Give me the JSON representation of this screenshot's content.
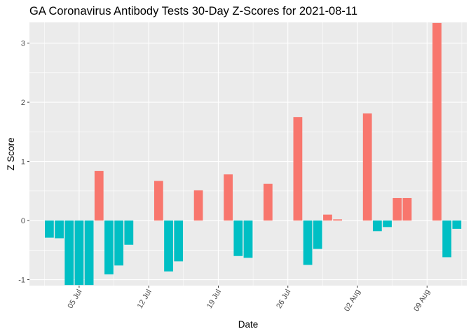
{
  "chart_data": {
    "type": "bar",
    "title": "GA Coronavirus Antibody Tests 30-Day Z-Scores for 2021-08-11",
    "xlabel": "Date",
    "ylabel": "Z Score",
    "x_type": "date",
    "x_ticks": [
      {
        "date": "2021-07-05",
        "label": "05 Jul"
      },
      {
        "date": "2021-07-12",
        "label": "12 Jul"
      },
      {
        "date": "2021-07-19",
        "label": "19 Jul"
      },
      {
        "date": "2021-07-26",
        "label": "26 Jul"
      },
      {
        "date": "2021-08-02",
        "label": "02 Aug"
      },
      {
        "date": "2021-08-09",
        "label": "09 Aug"
      }
    ],
    "y_ticks": [
      -1,
      0,
      1,
      2,
      3
    ],
    "ylim": [
      -1.1,
      3.35
    ],
    "xlim": [
      "2021-06-30",
      "2021-08-13"
    ],
    "grid": true,
    "legend": "none",
    "colors": {
      "positive": "#F8766D",
      "negative": "#00BFC4",
      "panel": "#EBEBEB",
      "grid": "#FFFFFF"
    },
    "points": [
      {
        "date": "2021-07-02",
        "value": -0.29
      },
      {
        "date": "2021-07-03",
        "value": -0.3
      },
      {
        "date": "2021-07-04",
        "value": -1.09
      },
      {
        "date": "2021-07-05",
        "value": -1.09
      },
      {
        "date": "2021-07-06",
        "value": -1.09
      },
      {
        "date": "2021-07-07",
        "value": 0.84
      },
      {
        "date": "2021-07-08",
        "value": -0.91
      },
      {
        "date": "2021-07-09",
        "value": -0.76
      },
      {
        "date": "2021-07-10",
        "value": -0.41
      },
      {
        "date": "2021-07-13",
        "value": 0.67
      },
      {
        "date": "2021-07-14",
        "value": -0.86
      },
      {
        "date": "2021-07-15",
        "value": -0.69
      },
      {
        "date": "2021-07-17",
        "value": 0.51
      },
      {
        "date": "2021-07-20",
        "value": 0.78
      },
      {
        "date": "2021-07-21",
        "value": -0.6
      },
      {
        "date": "2021-07-22",
        "value": -0.63
      },
      {
        "date": "2021-07-24",
        "value": 0.62
      },
      {
        "date": "2021-07-27",
        "value": 1.75
      },
      {
        "date": "2021-07-28",
        "value": -0.75
      },
      {
        "date": "2021-07-29",
        "value": -0.48
      },
      {
        "date": "2021-07-30",
        "value": 0.1
      },
      {
        "date": "2021-07-31",
        "value": 0.02
      },
      {
        "date": "2021-08-03",
        "value": 1.81
      },
      {
        "date": "2021-08-04",
        "value": -0.18
      },
      {
        "date": "2021-08-05",
        "value": -0.11
      },
      {
        "date": "2021-08-06",
        "value": 0.38
      },
      {
        "date": "2021-08-07",
        "value": 0.38
      },
      {
        "date": "2021-08-10",
        "value": 3.34
      },
      {
        "date": "2021-08-11",
        "value": -0.62
      },
      {
        "date": "2021-08-12",
        "value": -0.14
      }
    ]
  }
}
